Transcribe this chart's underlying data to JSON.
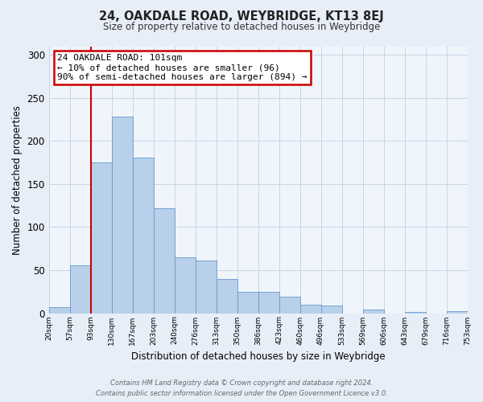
{
  "title": "24, OAKDALE ROAD, WEYBRIDGE, KT13 8EJ",
  "subtitle": "Size of property relative to detached houses in Weybridge",
  "xlabel": "Distribution of detached houses by size in Weybridge",
  "ylabel": "Number of detached properties",
  "bar_labels": [
    "20sqm",
    "57sqm",
    "93sqm",
    "130sqm",
    "167sqm",
    "203sqm",
    "240sqm",
    "276sqm",
    "313sqm",
    "350sqm",
    "386sqm",
    "423sqm",
    "460sqm",
    "496sqm",
    "533sqm",
    "569sqm",
    "606sqm",
    "643sqm",
    "679sqm",
    "716sqm",
    "753sqm"
  ],
  "bar_heights": [
    7,
    56,
    175,
    228,
    181,
    122,
    65,
    61,
    40,
    25,
    25,
    19,
    10,
    9,
    0,
    4,
    0,
    1,
    0,
    2
  ],
  "bar_color": "#b8d0ea",
  "bar_edge_color": "#6699cc",
  "ylim": [
    0,
    310
  ],
  "yticks": [
    0,
    50,
    100,
    150,
    200,
    250,
    300
  ],
  "vline_color": "#cc0000",
  "annotation_title": "24 OAKDALE ROAD: 101sqm",
  "annotation_line1": "← 10% of detached houses are smaller (96)",
  "annotation_line2": "90% of semi-detached houses are larger (894) →",
  "annotation_box_color": "#cc0000",
  "footer_line1": "Contains HM Land Registry data © Crown copyright and database right 2024.",
  "footer_line2": "Contains public sector information licensed under the Open Government Licence v3.0.",
  "bg_color": "#e8eef8",
  "plot_bg_color": "#f0f5fc",
  "grid_color": "#c8d4e8"
}
